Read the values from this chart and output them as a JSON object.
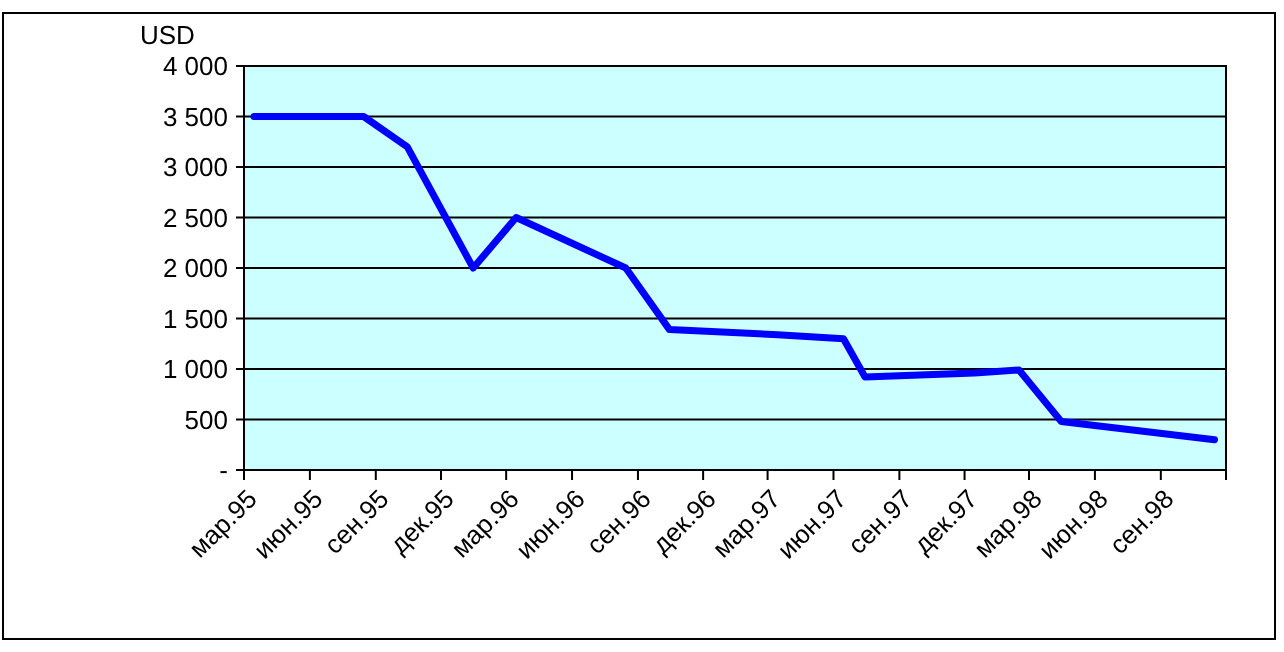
{
  "chart_data": {
    "type": "line",
    "ylabel": "USD",
    "x": [
      "1995-03-15",
      "1995-08-15",
      "1995-10-15",
      "1996-01-15",
      "1996-03-15",
      "1996-08-15",
      "1996-10-15",
      "1997-03-15",
      "1997-06-15",
      "1997-07-15",
      "1997-12-15",
      "1998-02-15",
      "1998-04-15",
      "1998-11-15"
    ],
    "series": [
      {
        "color": "#0000ff",
        "values": [
          3500,
          3500,
          3200,
          2000,
          2500,
          2000,
          1390,
          1340,
          1300,
          920,
          960,
          990,
          480,
          300
        ]
      }
    ],
    "xlim": [
      "1995-03-01",
      "1998-12-01"
    ],
    "xticks": [
      {
        "value": "1995-03-01",
        "label": "мар.95"
      },
      {
        "value": "1995-06-01",
        "label": "июн.95"
      },
      {
        "value": "1995-09-01",
        "label": "сен.95"
      },
      {
        "value": "1995-12-01",
        "label": "дек.95"
      },
      {
        "value": "1996-03-01",
        "label": "мар.96"
      },
      {
        "value": "1996-06-01",
        "label": "июн.96"
      },
      {
        "value": "1996-09-01",
        "label": "сен.96"
      },
      {
        "value": "1996-12-01",
        "label": "дек.96"
      },
      {
        "value": "1997-03-01",
        "label": "мар.97"
      },
      {
        "value": "1997-06-01",
        "label": "июн.97"
      },
      {
        "value": "1997-09-01",
        "label": "сен.97"
      },
      {
        "value": "1997-12-01",
        "label": "дек.97"
      },
      {
        "value": "1998-03-01",
        "label": "мар.98"
      },
      {
        "value": "1998-06-01",
        "label": "июн.98"
      },
      {
        "value": "1998-09-01",
        "label": "сен.98"
      },
      {
        "value": "1998-12-01",
        "label": null
      }
    ],
    "ylim": [
      0,
      4000
    ],
    "yticks": [
      {
        "value": 0,
        "label": "-"
      },
      {
        "value": 500,
        "label": "500"
      },
      {
        "value": 1000,
        "label": "1 000"
      },
      {
        "value": 1500,
        "label": "1 500"
      },
      {
        "value": 2000,
        "label": "2 000"
      },
      {
        "value": 2500,
        "label": "2 500"
      },
      {
        "value": 3000,
        "label": "3 000"
      },
      {
        "value": 3500,
        "label": "3 500"
      },
      {
        "value": 4000,
        "label": "4 000"
      }
    ],
    "grid": "y",
    "marker": "none",
    "line_style": "solid"
  }
}
